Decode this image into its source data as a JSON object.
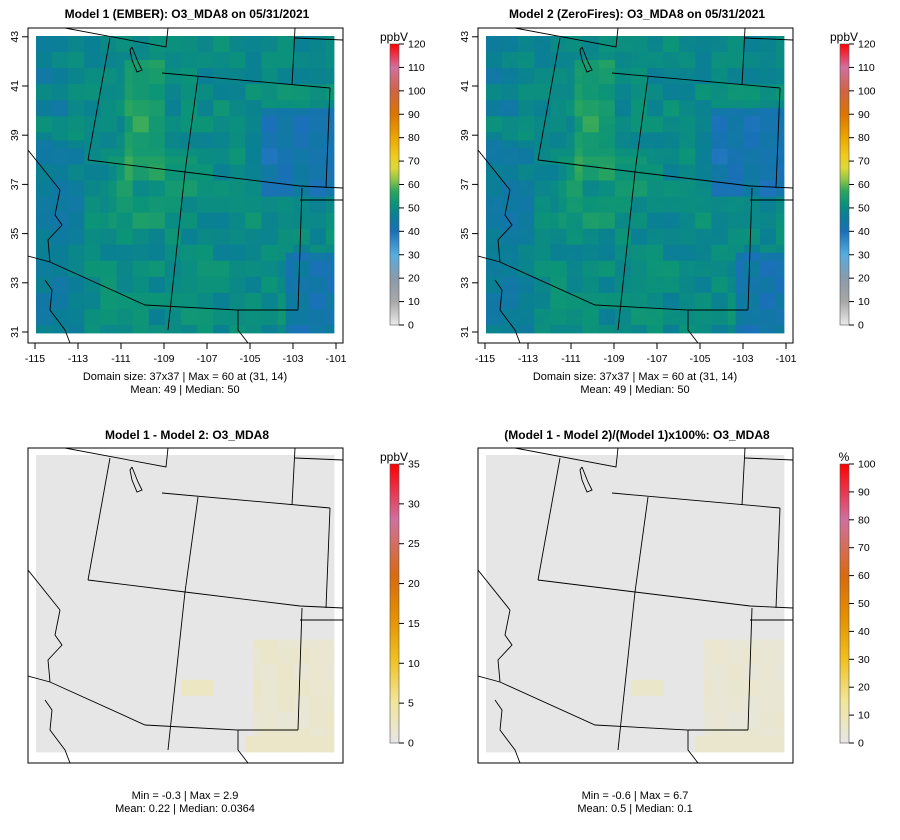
{
  "panels": [
    {
      "id": "model1",
      "title": "Model 1 (EMBER): O3_MDA8 on 05/31/2021",
      "kind": "conc",
      "unit": "ppbV",
      "stats": [
        "Domain size: 37x37 | Max = 60 at (31, 14)",
        "Mean: 49 |  Median: 50"
      ],
      "ticks": [
        "0",
        "10",
        "20",
        "30",
        "40",
        "50",
        "60",
        "70",
        "80",
        "90",
        "100",
        "110",
        "120"
      ],
      "axes": true
    },
    {
      "id": "model2",
      "title": "Model 2 (ZeroFires): O3_MDA8 on 05/31/2021",
      "kind": "conc",
      "unit": "ppbV",
      "stats": [
        "Domain size: 37x37 | Max = 60 at (31, 14)",
        "Mean: 49 |  Median: 50"
      ],
      "ticks": [
        "0",
        "10",
        "20",
        "30",
        "40",
        "50",
        "60",
        "70",
        "80",
        "90",
        "100",
        "110",
        "120"
      ],
      "axes": true
    },
    {
      "id": "diff",
      "title": "Model 1 - Model 2: O3_MDA8",
      "kind": "diff",
      "unit": "ppbV",
      "stats": [
        "Min = -0.3 | Max = 2.9",
        "Mean: 0.22 |  Median: 0.0364"
      ],
      "ticks": [
        "0",
        "5",
        "10",
        "15",
        "20",
        "25",
        "30",
        "35"
      ],
      "axes": false
    },
    {
      "id": "pctdiff",
      "title": "(Model 1 - Model 2)/(Model 1)x100%: O3_MDA8",
      "kind": "diff",
      "unit": "%",
      "stats": [
        "Min = -0.6 | Max = 6.7",
        "Mean: 0.5 |  Median: 0.1"
      ],
      "ticks": [
        "0",
        "10",
        "20",
        "30",
        "40",
        "50",
        "60",
        "70",
        "80",
        "90",
        "100"
      ],
      "axes": false
    }
  ],
  "lat_ticks": [
    "31",
    "33",
    "35",
    "37",
    "39",
    "41",
    "43"
  ],
  "lon_ticks": [
    "-115",
    "-113",
    "-111",
    "-109",
    "-107",
    "-105",
    "-103",
    "-101"
  ],
  "colors": {
    "frame": "#000000",
    "nodata": "#e6e6e6"
  }
}
